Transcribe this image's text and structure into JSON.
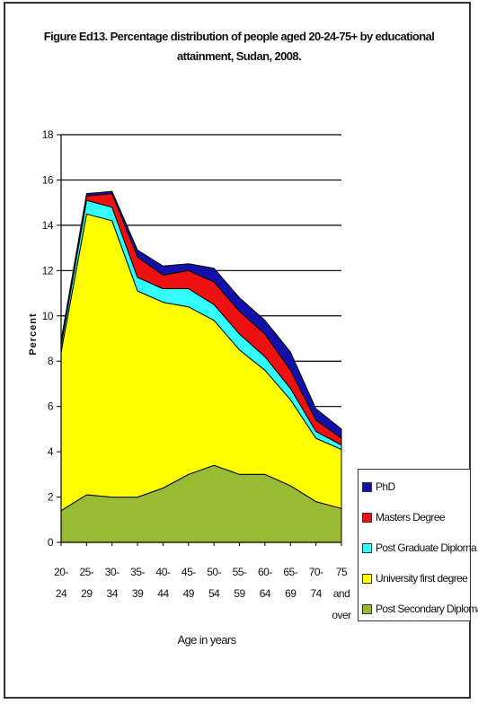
{
  "title_lines": [
    "Figure Ed13. Percentage distribution of people aged 20-24-75+ by educational",
    "attainment, Sudan, 2008."
  ],
  "chart_data": {
    "type": "area",
    "stacked": true,
    "title": "Figure Ed13. Percentage distribution of people aged 20-24-75+ by educational attainment, Sudan, 2008.",
    "xlabel": "Age in years",
    "ylabel": "Percent",
    "ylim": [
      0,
      18
    ],
    "yticks": [
      0,
      2,
      4,
      6,
      8,
      10,
      12,
      14,
      16,
      18
    ],
    "grid": "horizontal",
    "legend_position": "bottom-right",
    "categories": [
      [
        "20-",
        "24"
      ],
      [
        "25-",
        "29"
      ],
      [
        "30-",
        "34"
      ],
      [
        "35-",
        "39"
      ],
      [
        "40-",
        "44"
      ],
      [
        "45-",
        "49"
      ],
      [
        "50-",
        "54"
      ],
      [
        "55-",
        "59"
      ],
      [
        "60-",
        "64"
      ],
      [
        "65-",
        "69"
      ],
      [
        "70-",
        "74"
      ],
      [
        "75",
        "and",
        "over"
      ]
    ],
    "series": [
      {
        "name": "Post Secondary Diploma",
        "color": "#99bb33",
        "values": [
          1.4,
          2.1,
          2.0,
          2.0,
          2.4,
          3.0,
          3.4,
          3.0,
          3.0,
          2.5,
          1.8,
          1.5
        ]
      },
      {
        "name": "University first degree",
        "color": "#ffff00",
        "values": [
          7.0,
          12.4,
          12.2,
          9.1,
          8.2,
          7.4,
          6.4,
          5.5,
          4.6,
          3.8,
          2.8,
          2.6
        ]
      },
      {
        "name": "Post Graduate Diploma",
        "color": "#33ffff",
        "values": [
          0.3,
          0.6,
          0.6,
          0.6,
          0.6,
          0.8,
          0.7,
          0.7,
          0.6,
          0.5,
          0.3,
          0.2
        ]
      },
      {
        "name": "Masters Degree",
        "color": "#ee1111",
        "values": [
          0.2,
          0.2,
          0.6,
          0.9,
          0.6,
          0.8,
          1.0,
          1.0,
          1.0,
          0.8,
          0.5,
          0.3
        ]
      },
      {
        "name": "PhD",
        "color": "#1111aa",
        "values": [
          0.0,
          0.1,
          0.1,
          0.3,
          0.4,
          0.3,
          0.6,
          0.6,
          0.6,
          0.8,
          0.5,
          0.4
        ]
      }
    ]
  }
}
